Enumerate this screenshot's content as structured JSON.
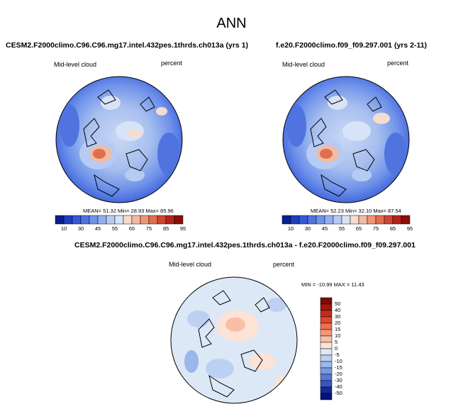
{
  "figure": {
    "title": "ANN",
    "panels": [
      {
        "case": "CESM2.F2000climo.C96.C96.mg17.intel.432pes.1thrds.ch013a (yrs 1)",
        "variable": "Mid-level cloud",
        "units": "percent",
        "stats": "MEAN=  51.32  Min=  28.93  Max=  85.96"
      },
      {
        "case": "f.e20.F2000climo.f09_f09.297.001 (yrs 2-11)",
        "variable": "Mid-level cloud",
        "units": "percent",
        "stats": "MEAN=  52.23  Min=  32.10  Max=  87.54"
      },
      {
        "case": "CESM2.F2000climo.C96.C96.mg17.intel.432pes.1thrds.ch013a - f.e20.F2000climo.f09_f09.297.001",
        "variable": "Mid-level cloud",
        "units": "percent",
        "stats": "MIN = -10.99 MAX =  11.43"
      }
    ],
    "colorbar_levels": [
      "10",
      "30",
      "45",
      "55",
      "65",
      "75",
      "85",
      "95"
    ],
    "diff_colorbar_levels": [
      "50",
      "40",
      "30",
      "20",
      "15",
      "10",
      "5",
      "0",
      "-5",
      "-10",
      "-15",
      "-20",
      "-30",
      "-40",
      "-50"
    ],
    "colors": {
      "seq": [
        "#0a1f8f",
        "#1f3fbf",
        "#3559d6",
        "#4f74e0",
        "#6f92ea",
        "#92afef",
        "#b6cbf4",
        "#d8e3f7",
        "#f6dcd0",
        "#f2bba3",
        "#ec9778",
        "#e06f50",
        "#cf4530",
        "#b42419",
        "#8c0e0b"
      ],
      "div": [
        "#7b0a0a",
        "#a5150f",
        "#c82a1c",
        "#e0482e",
        "#ee7050",
        "#f59778",
        "#f9bfa6",
        "#fde3d5",
        "#dde8f7",
        "#bcd0f1",
        "#9ab6ea",
        "#7a98e0",
        "#5a78d2",
        "#3757bf",
        "#14299a",
        "#061375"
      ]
    }
  }
}
